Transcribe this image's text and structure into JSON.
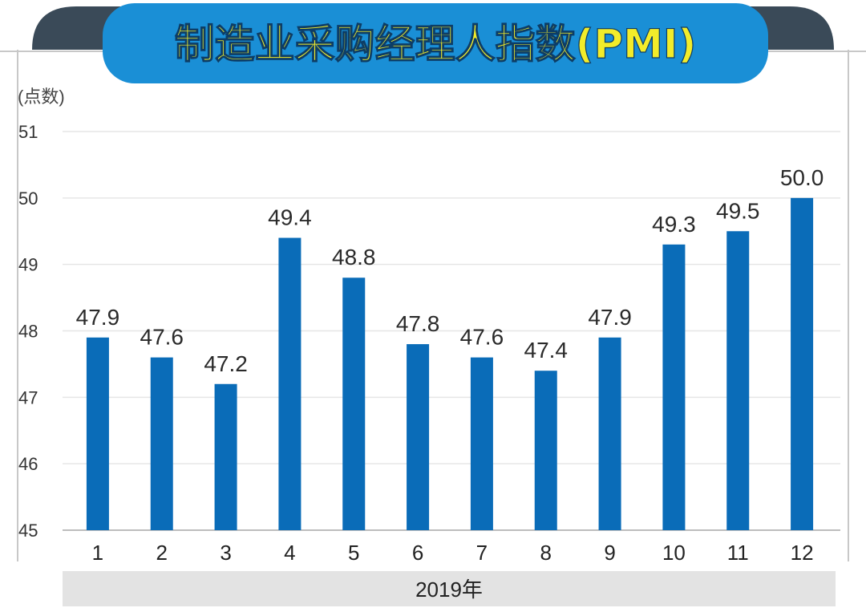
{
  "chart_data": {
    "type": "bar",
    "title": "制造业采购经理人指数(PMI)",
    "ylabel": "(点数)",
    "xlabel": "2019年",
    "categories": [
      "1",
      "2",
      "3",
      "4",
      "5",
      "6",
      "7",
      "8",
      "9",
      "10",
      "11",
      "12"
    ],
    "values": [
      47.9,
      47.6,
      47.2,
      49.4,
      48.8,
      47.8,
      47.6,
      47.4,
      47.9,
      49.3,
      49.5,
      50.0
    ],
    "value_labels": [
      "47.9",
      "47.6",
      "47.2",
      "49.4",
      "48.8",
      "47.8",
      "47.6",
      "47.4",
      "47.9",
      "49.3",
      "49.5",
      "50.0"
    ],
    "ylim": [
      45,
      51
    ],
    "yticks": [
      45,
      46,
      47,
      48,
      49,
      50,
      51
    ],
    "grid": true,
    "colors": {
      "bar": "#0a6cb8",
      "banner": "#1a8fd6",
      "banner_dark": "#3a4a58",
      "title_text": "#f2ec2a",
      "xband": "#e3e3e3"
    }
  }
}
